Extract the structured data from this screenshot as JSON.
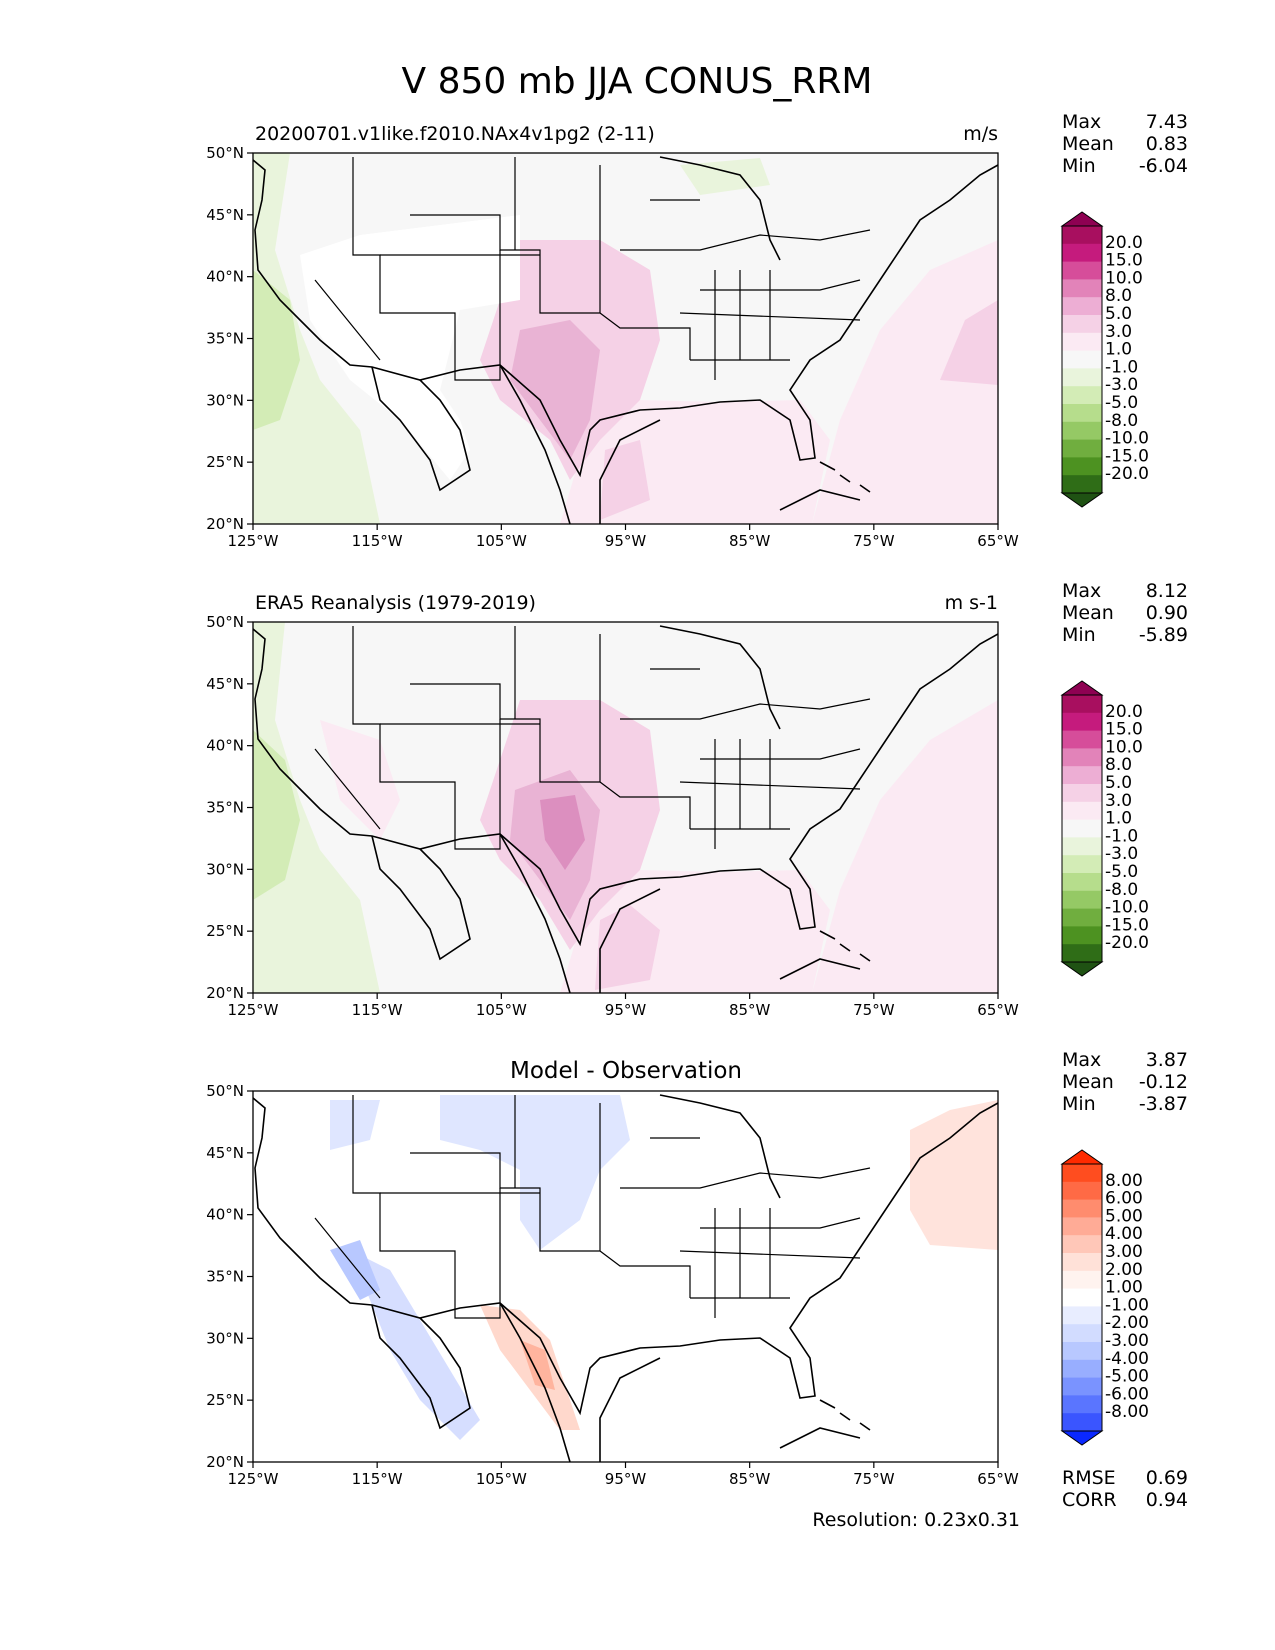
{
  "figure": {
    "title": "V 850 mb JJA CONUS_RRM",
    "resolution": "Resolution: 0.23x0.31"
  },
  "chart_data": [
    {
      "type": "heatmap",
      "panel": "test",
      "title_left": "20200701.v1like.f2010.NAx4v1pg2 (2-11)",
      "title_right": "m/s",
      "x_ticks": [
        "125°W",
        "115°W",
        "105°W",
        "95°W",
        "85°W",
        "75°W",
        "65°W"
      ],
      "y_ticks": [
        "20°N",
        "25°N",
        "30°N",
        "35°N",
        "40°N",
        "45°N",
        "50°N"
      ],
      "xlim": [
        -125,
        -65
      ],
      "ylim": [
        20,
        50
      ],
      "stats": [
        {
          "label": "Max",
          "value": "7.43"
        },
        {
          "label": "Mean",
          "value": "0.83"
        },
        {
          "label": "Min",
          "value": "-6.04"
        }
      ],
      "levels": [
        "20.0",
        "15.0",
        "10.0",
        "8.0",
        "5.0",
        "3.0",
        "1.0",
        "-1.0",
        "-3.0",
        "-5.0",
        "-8.0",
        "-10.0",
        "-15.0",
        "-20.0"
      ],
      "colors": [
        "#8e0152",
        "#a80f5f",
        "#c51b7d",
        "#d64d9a",
        "#e283b9",
        "#edaed4",
        "#f5d1e6",
        "#fbeaf3",
        "#f7f7f7",
        "#e9f4dc",
        "#d3ecb6",
        "#b6dd8c",
        "#95c965",
        "#70ae3f",
        "#4d9221",
        "#2f6d17",
        "#1f5213"
      ],
      "regions": [
        {
          "name": "pacific-coast-green",
          "value": -3.0
        },
        {
          "name": "southern-plains-pink",
          "value": 6.0
        },
        {
          "name": "gulf-pink",
          "value": 2.0
        },
        {
          "name": "atlantic-pink",
          "value": 2.5
        }
      ]
    },
    {
      "type": "heatmap",
      "panel": "reference",
      "title_left": "ERA5 Reanalysis (1979-2019)",
      "title_right": "m s-1",
      "x_ticks": [
        "125°W",
        "115°W",
        "105°W",
        "95°W",
        "85°W",
        "75°W",
        "65°W"
      ],
      "y_ticks": [
        "20°N",
        "25°N",
        "30°N",
        "35°N",
        "40°N",
        "45°N",
        "50°N"
      ],
      "xlim": [
        -125,
        -65
      ],
      "ylim": [
        20,
        50
      ],
      "stats": [
        {
          "label": "Max",
          "value": "8.12"
        },
        {
          "label": "Mean",
          "value": "0.90"
        },
        {
          "label": "Min",
          "value": "-5.89"
        }
      ],
      "levels": [
        "20.0",
        "15.0",
        "10.0",
        "8.0",
        "5.0",
        "3.0",
        "1.0",
        "-1.0",
        "-3.0",
        "-5.0",
        "-8.0",
        "-10.0",
        "-15.0",
        "-20.0"
      ],
      "colors": [
        "#8e0152",
        "#a80f5f",
        "#c51b7d",
        "#d64d9a",
        "#e283b9",
        "#edaed4",
        "#f5d1e6",
        "#fbeaf3",
        "#f7f7f7",
        "#e9f4dc",
        "#d3ecb6",
        "#b6dd8c",
        "#95c965",
        "#70ae3f",
        "#4d9221",
        "#2f6d17",
        "#1f5213"
      ],
      "regions": [
        {
          "name": "pacific-coast-green",
          "value": -3.0
        },
        {
          "name": "southern-plains-pink",
          "value": 6.5
        },
        {
          "name": "gulf-pink",
          "value": 2.0
        },
        {
          "name": "atlantic-pink",
          "value": 1.5
        }
      ]
    },
    {
      "type": "heatmap",
      "panel": "difference",
      "title_center": "Model - Observation",
      "x_ticks": [
        "125°W",
        "115°W",
        "105°W",
        "95°W",
        "85°W",
        "75°W",
        "65°W"
      ],
      "y_ticks": [
        "20°N",
        "25°N",
        "30°N",
        "35°N",
        "40°N",
        "45°N",
        "50°N"
      ],
      "xlim": [
        -125,
        -65
      ],
      "ylim": [
        20,
        50
      ],
      "stats": [
        {
          "label": "Max",
          "value": "3.87"
        },
        {
          "label": "Mean",
          "value": "-0.12"
        },
        {
          "label": "Min",
          "value": "-3.87"
        }
      ],
      "extra_stats": [
        {
          "label": "RMSE",
          "value": "0.69"
        },
        {
          "label": "CORR",
          "value": "0.94"
        }
      ],
      "levels": [
        "8.00",
        "6.00",
        "5.00",
        "4.00",
        "3.00",
        "2.00",
        "1.00",
        "-1.00",
        "-2.00",
        "-3.00",
        "-4.00",
        "-5.00",
        "-6.00",
        "-8.00"
      ],
      "colors": [
        "#ff2a00",
        "#ff4d1f",
        "#ff6a45",
        "#ff8c6e",
        "#ffab96",
        "#ffc7b8",
        "#ffe1d8",
        "#fff3ef",
        "#ffffff",
        "#e8edff",
        "#d2dcff",
        "#b8c8ff",
        "#98aeff",
        "#7a93ff",
        "#5a75ff",
        "#3a55ff",
        "#0a28ff"
      ],
      "regions": [
        {
          "name": "northern-plains-blue",
          "value": -1.5
        },
        {
          "name": "mexico-plateau-red",
          "value": 2.5
        },
        {
          "name": "gulf-of-california-blue",
          "value": -2.0
        },
        {
          "name": "northwest-atlantic-red",
          "value": 1.5
        }
      ]
    }
  ]
}
